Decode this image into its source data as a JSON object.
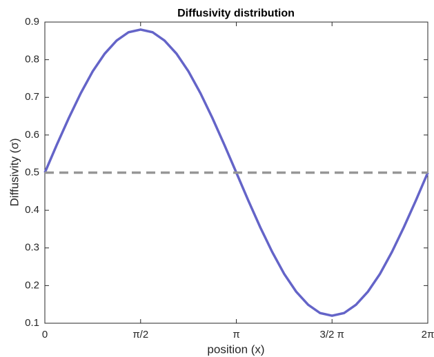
{
  "chart_data": {
    "type": "line",
    "title": "Diffusivity distribution",
    "xlabel": "position (x)",
    "ylabel": "Diffusivity (σ)",
    "xlim": [
      0,
      6.283
    ],
    "ylim": [
      0.1,
      0.9
    ],
    "xticks": [
      0,
      {
        "value": 1.571,
        "label": "π/2"
      },
      {
        "value": 3.142,
        "label": "π"
      },
      {
        "value": 4.712,
        "label": "3/2 π"
      },
      {
        "value": 6.283,
        "label": "2π"
      }
    ],
    "yticks": [
      0.1,
      0.2,
      0.3,
      0.4,
      0.5,
      0.6,
      0.7,
      0.8,
      0.9
    ],
    "grid": false,
    "series": [
      {
        "color": "#6464c8",
        "dashed": false,
        "x": [
          0,
          0.196,
          0.393,
          0.589,
          0.785,
          0.982,
          1.178,
          1.374,
          1.571,
          1.767,
          1.963,
          2.16,
          2.356,
          2.553,
          2.749,
          2.945,
          3.142,
          3.338,
          3.534,
          3.731,
          3.927,
          4.123,
          4.32,
          4.516,
          4.712,
          4.909,
          5.105,
          5.301,
          5.498,
          5.694,
          5.89,
          6.087,
          6.283
        ],
        "values": [
          0.5,
          0.574,
          0.645,
          0.711,
          0.769,
          0.816,
          0.851,
          0.873,
          0.88,
          0.873,
          0.851,
          0.816,
          0.769,
          0.711,
          0.645,
          0.574,
          0.5,
          0.426,
          0.355,
          0.289,
          0.231,
          0.184,
          0.149,
          0.127,
          0.12,
          0.127,
          0.149,
          0.184,
          0.231,
          0.289,
          0.355,
          0.426,
          0.5
        ]
      },
      {
        "color": "#969696",
        "dashed": true,
        "x": [
          0,
          6.283
        ],
        "values": [
          0.5,
          0.5
        ]
      }
    ]
  }
}
